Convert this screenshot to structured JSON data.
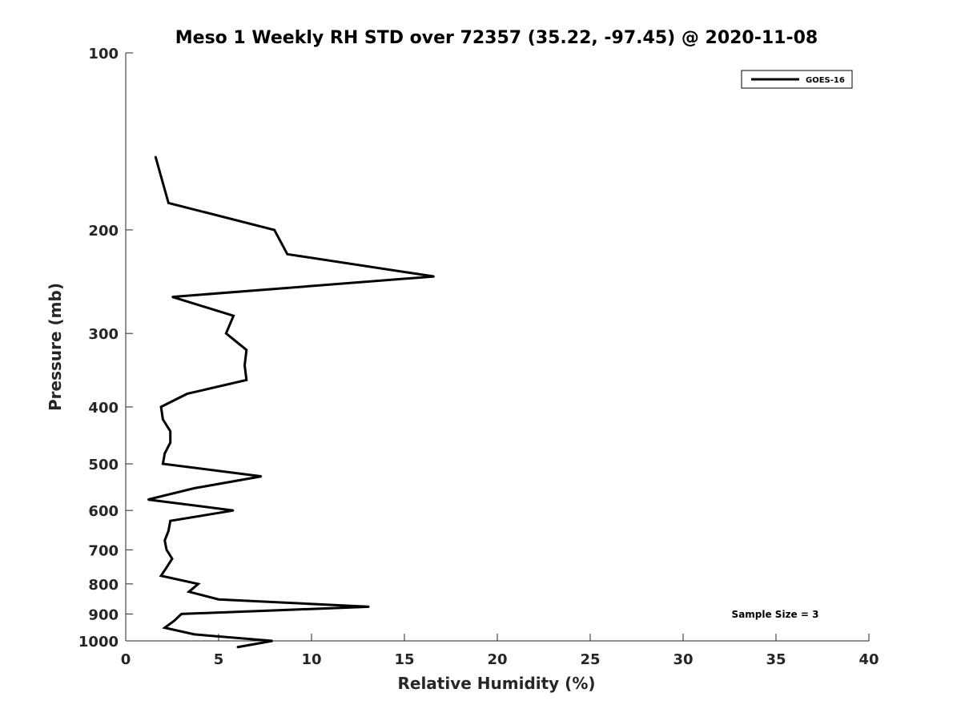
{
  "chart_data": {
    "type": "line",
    "title": "Meso 1 Weekly RH STD over 72357 (35.22, -97.45) @ 2020-11-08",
    "xlabel": "Relative Humidity (%)",
    "ylabel": "Pressure (mb)",
    "xlim": [
      0,
      40
    ],
    "ylim": [
      100,
      1000
    ],
    "yscale": "log",
    "yreversed": true,
    "xticks": [
      0,
      5,
      10,
      15,
      20,
      25,
      30,
      35,
      40
    ],
    "yticks": [
      100,
      200,
      300,
      400,
      500,
      600,
      700,
      800,
      900,
      1000
    ],
    "grid": false,
    "legend_position": "top-right",
    "series": [
      {
        "name": "GOES-16",
        "color": "#000000",
        "points": [
          {
            "x": 1.6,
            "y": 150
          },
          {
            "x": 2.3,
            "y": 180
          },
          {
            "x": 8.0,
            "y": 200
          },
          {
            "x": 8.7,
            "y": 220
          },
          {
            "x": 16.6,
            "y": 240
          },
          {
            "x": 2.5,
            "y": 260
          },
          {
            "x": 5.8,
            "y": 280
          },
          {
            "x": 5.4,
            "y": 300
          },
          {
            "x": 6.5,
            "y": 320
          },
          {
            "x": 6.4,
            "y": 340
          },
          {
            "x": 6.5,
            "y": 360
          },
          {
            "x": 3.3,
            "y": 380
          },
          {
            "x": 1.9,
            "y": 400
          },
          {
            "x": 2.0,
            "y": 420
          },
          {
            "x": 2.4,
            "y": 440
          },
          {
            "x": 2.4,
            "y": 460
          },
          {
            "x": 2.1,
            "y": 480
          },
          {
            "x": 2.0,
            "y": 500
          },
          {
            "x": 7.3,
            "y": 525
          },
          {
            "x": 3.7,
            "y": 550
          },
          {
            "x": 1.2,
            "y": 575
          },
          {
            "x": 5.8,
            "y": 600
          },
          {
            "x": 2.4,
            "y": 625
          },
          {
            "x": 2.3,
            "y": 650
          },
          {
            "x": 2.1,
            "y": 675
          },
          {
            "x": 2.2,
            "y": 700
          },
          {
            "x": 2.5,
            "y": 725
          },
          {
            "x": 2.2,
            "y": 750
          },
          {
            "x": 1.9,
            "y": 775
          },
          {
            "x": 3.9,
            "y": 800
          },
          {
            "x": 3.4,
            "y": 825
          },
          {
            "x": 5.0,
            "y": 850
          },
          {
            "x": 13.1,
            "y": 875
          },
          {
            "x": 3.0,
            "y": 900
          },
          {
            "x": 2.6,
            "y": 925
          },
          {
            "x": 2.1,
            "y": 950
          },
          {
            "x": 3.7,
            "y": 975
          },
          {
            "x": 7.9,
            "y": 1000
          },
          {
            "x": 6.0,
            "y": 1025
          }
        ]
      }
    ],
    "annotations": [
      "Sample Size = 3"
    ]
  }
}
